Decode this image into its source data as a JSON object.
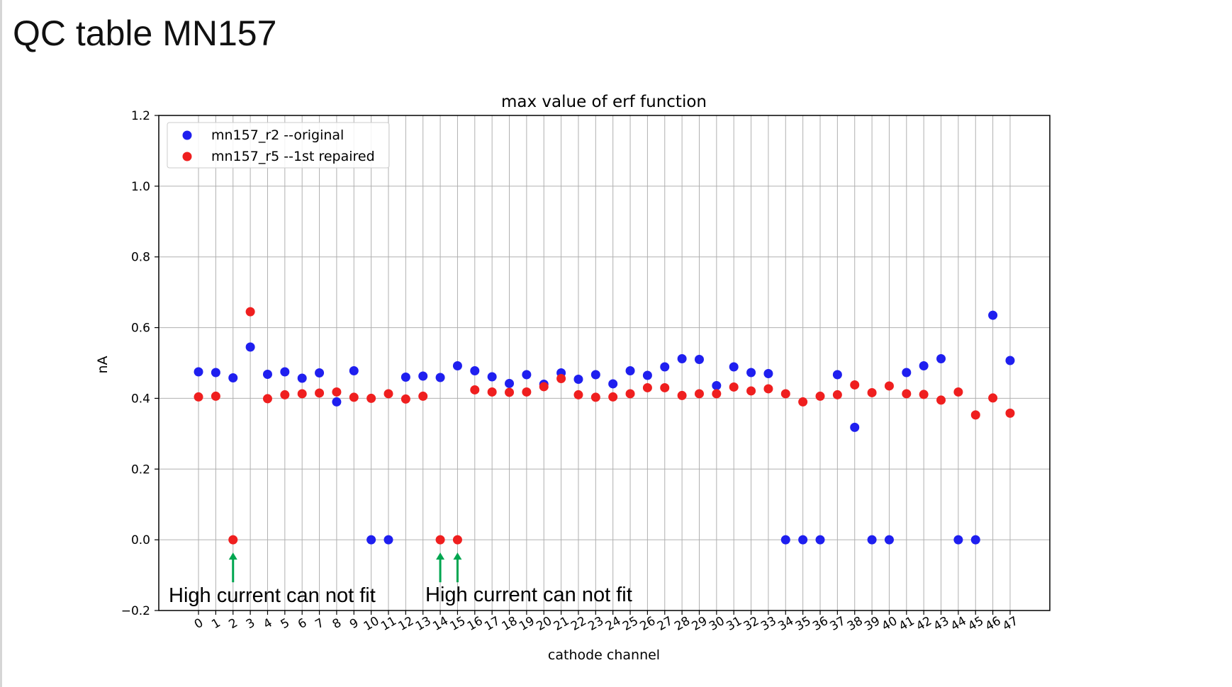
{
  "slide": {
    "title": "QC table MN157"
  },
  "chart_data": {
    "type": "scatter",
    "title": "max value of erf function",
    "xlabel": "cathode channel",
    "ylabel": "nA",
    "xlim": [
      -2.3,
      49.3
    ],
    "ylim": [
      -0.2,
      1.2
    ],
    "yticks": [
      -0.2,
      0.0,
      0.2,
      0.4,
      0.6,
      0.8,
      1.0,
      1.2
    ],
    "ytick_labels": [
      "−0.2",
      "0.0",
      "0.2",
      "0.4",
      "0.6",
      "0.8",
      "1.0",
      "1.2"
    ],
    "x": [
      0,
      1,
      2,
      3,
      4,
      5,
      6,
      7,
      8,
      9,
      10,
      11,
      12,
      13,
      14,
      15,
      16,
      17,
      18,
      19,
      20,
      21,
      22,
      23,
      24,
      25,
      26,
      27,
      28,
      29,
      30,
      31,
      32,
      33,
      34,
      35,
      36,
      37,
      38,
      39,
      40,
      41,
      42,
      43,
      44,
      45,
      46,
      47
    ],
    "xtick_labels": [
      "0",
      "1",
      "2",
      "3",
      "4",
      "5",
      "6",
      "7",
      "8",
      "9",
      "10",
      "11",
      "12",
      "13",
      "14",
      "15",
      "16",
      "17",
      "18",
      "19",
      "20",
      "21",
      "22",
      "23",
      "24",
      "25",
      "26",
      "27",
      "28",
      "29",
      "30",
      "31",
      "32",
      "33",
      "34",
      "35",
      "36",
      "37",
      "38",
      "39",
      "40",
      "41",
      "42",
      "43",
      "44",
      "45",
      "46",
      "47"
    ],
    "grid": true,
    "legend_position": "top-left",
    "series": [
      {
        "name": "mn157_r2 --original",
        "color": "#1f1fef",
        "values": [
          0.475,
          0.473,
          0.458,
          0.545,
          0.468,
          0.475,
          0.457,
          0.472,
          0.39,
          0.478,
          0.0,
          0.0,
          0.46,
          0.463,
          0.459,
          0.492,
          0.478,
          0.461,
          0.442,
          0.467,
          0.44,
          0.472,
          0.454,
          0.467,
          0.441,
          0.478,
          0.465,
          0.489,
          0.512,
          0.51,
          0.436,
          0.489,
          0.473,
          0.47,
          0.0,
          0.0,
          0.0,
          0.467,
          0.318,
          0.0,
          0.0,
          0.473,
          0.492,
          0.512,
          0.0,
          0.0,
          0.635,
          0.507
        ]
      },
      {
        "name": "mn157_r5 --1st repaired",
        "color": "#ef1f1f",
        "values": [
          0.404,
          0.406,
          0.0,
          0.645,
          0.399,
          0.41,
          0.413,
          0.415,
          0.418,
          0.403,
          0.4,
          0.413,
          0.398,
          0.406,
          0.0,
          0.0,
          0.424,
          0.418,
          0.417,
          0.418,
          0.433,
          0.456,
          0.41,
          0.403,
          0.404,
          0.413,
          0.43,
          0.43,
          0.408,
          0.413,
          0.413,
          0.432,
          0.421,
          0.427,
          0.413,
          0.39,
          0.406,
          0.41,
          0.438,
          0.416,
          0.435,
          0.413,
          0.411,
          0.395,
          0.418,
          0.353,
          0.401,
          0.358
        ]
      }
    ],
    "annotations": [
      {
        "text": "High current can not fit",
        "arrow_channels": [
          2
        ]
      },
      {
        "text": "High current can not fit",
        "arrow_channels": [
          14,
          15
        ]
      }
    ],
    "annotation_color": "#00a650"
  }
}
